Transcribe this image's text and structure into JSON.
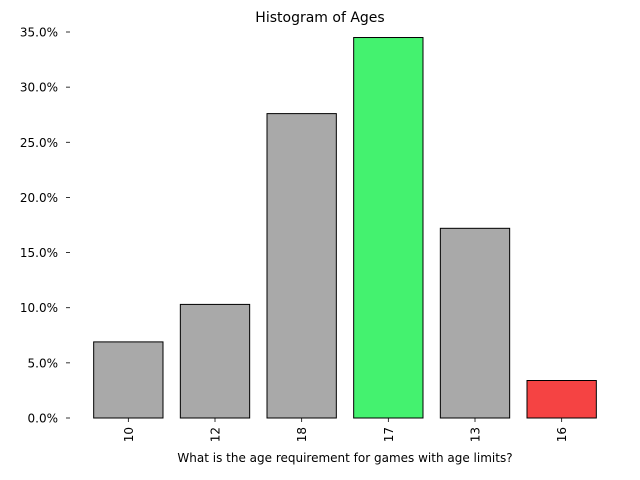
{
  "chart_data": {
    "type": "bar",
    "title": "Histogram of Ages",
    "xlabel": "What is the age requirement for games with age limits?",
    "ylabel": "",
    "categories": [
      "10",
      "12",
      "18",
      "17",
      "13",
      "16"
    ],
    "values": [
      6.9,
      10.3,
      27.6,
      34.5,
      17.2,
      3.4
    ],
    "ylim": [
      0,
      35
    ],
    "yticks": [
      0,
      5,
      10,
      15,
      20,
      25,
      30,
      35
    ],
    "ytick_labels": [
      "0.0%",
      "5.0%",
      "10.0%",
      "15.0%",
      "20.0%",
      "25.0%",
      "30.0%",
      "35.0%"
    ],
    "bar_colors": [
      "#a9a9a9",
      "#a9a9a9",
      "#a9a9a9",
      "#44f26f",
      "#a9a9a9",
      "#f54343"
    ],
    "bar_edge_color": "#000000",
    "grid": false,
    "legend": "none"
  }
}
